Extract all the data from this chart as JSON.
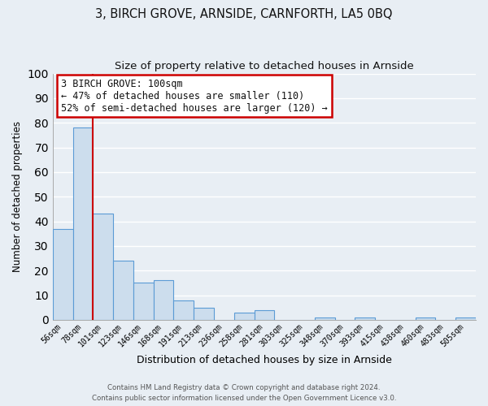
{
  "title": "3, BIRCH GROVE, ARNSIDE, CARNFORTH, LA5 0BQ",
  "subtitle": "Size of property relative to detached houses in Arnside",
  "xlabel": "Distribution of detached houses by size in Arnside",
  "ylabel": "Number of detached properties",
  "categories": [
    "56sqm",
    "78sqm",
    "101sqm",
    "123sqm",
    "146sqm",
    "168sqm",
    "191sqm",
    "213sqm",
    "236sqm",
    "258sqm",
    "281sqm",
    "303sqm",
    "325sqm",
    "348sqm",
    "370sqm",
    "393sqm",
    "415sqm",
    "438sqm",
    "460sqm",
    "483sqm",
    "505sqm"
  ],
  "values": [
    37,
    78,
    43,
    24,
    15,
    16,
    8,
    5,
    0,
    3,
    4,
    0,
    0,
    1,
    0,
    1,
    0,
    0,
    1,
    0,
    1
  ],
  "bar_color": "#ccdded",
  "bar_edge_color": "#5b9bd5",
  "highlight_line_color": "#cc0000",
  "highlight_bar_index": 2,
  "annotation_text": "3 BIRCH GROVE: 100sqm\n← 47% of detached houses are smaller (110)\n52% of semi-detached houses are larger (120) →",
  "annotation_box_color": "#ffffff",
  "annotation_box_edge_color": "#cc0000",
  "ylim": [
    0,
    100
  ],
  "yticks": [
    0,
    10,
    20,
    30,
    40,
    50,
    60,
    70,
    80,
    90,
    100
  ],
  "footer_line1": "Contains HM Land Registry data © Crown copyright and database right 2024.",
  "footer_line2": "Contains public sector information licensed under the Open Government Licence v3.0.",
  "background_color": "#e8eef4",
  "plot_bg_color": "#e8eef4",
  "grid_color": "#ffffff",
  "title_fontsize": 10.5,
  "subtitle_fontsize": 9.5,
  "annotation_fontsize": 8.5
}
